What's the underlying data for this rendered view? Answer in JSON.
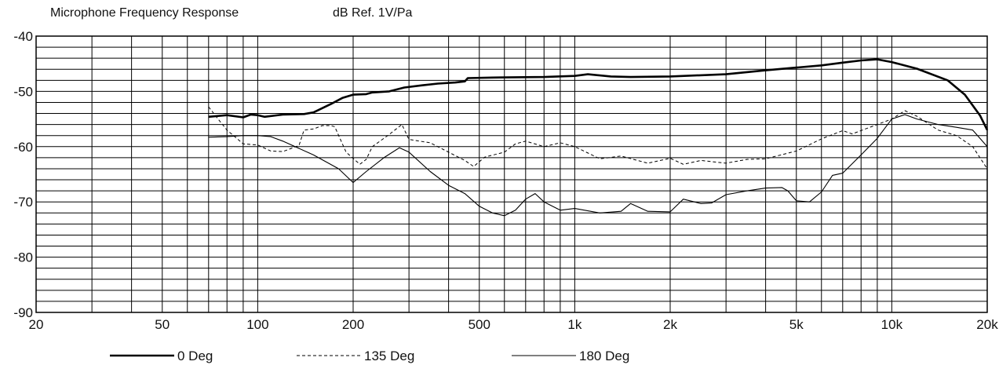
{
  "chart_data": {
    "type": "line",
    "title": "Microphone Frequency Response",
    "subtitle": "dB Ref. 1V/Pa",
    "xscale": "log",
    "xlim": [
      20,
      20000
    ],
    "ylim": [
      -90,
      -40
    ],
    "grid": true,
    "legend_placement": "bottom",
    "x_ticks": [
      {
        "v": 20,
        "label": "20"
      },
      {
        "v": 50,
        "label": "50"
      },
      {
        "v": 100,
        "label": "100"
      },
      {
        "v": 200,
        "label": "200"
      },
      {
        "v": 500,
        "label": "500"
      },
      {
        "v": 1000,
        "label": "1k"
      },
      {
        "v": 2000,
        "label": "2k"
      },
      {
        "v": 5000,
        "label": "5k"
      },
      {
        "v": 10000,
        "label": "10k"
      },
      {
        "v": 20000,
        "label": "20k"
      }
    ],
    "y_ticks": [
      {
        "v": -40,
        "label": "-40"
      },
      {
        "v": -50,
        "label": "-50"
      },
      {
        "v": -60,
        "label": "-60"
      },
      {
        "v": -70,
        "label": "-70"
      },
      {
        "v": -80,
        "label": "-80"
      },
      {
        "v": -90,
        "label": "-90"
      }
    ],
    "series": [
      {
        "name": "0 Deg",
        "style": "thick",
        "points": [
          [
            70,
            -54.6
          ],
          [
            80,
            -54.3
          ],
          [
            90,
            -54.7
          ],
          [
            95,
            -54.2
          ],
          [
            100,
            -54.3
          ],
          [
            105,
            -54.6
          ],
          [
            120,
            -54.2
          ],
          [
            140,
            -54.1
          ],
          [
            150,
            -53.8
          ],
          [
            170,
            -52.3
          ],
          [
            185,
            -51.2
          ],
          [
            200,
            -50.6
          ],
          [
            220,
            -50.5
          ],
          [
            230,
            -50.2
          ],
          [
            260,
            -50
          ],
          [
            290,
            -49.3
          ],
          [
            330,
            -48.9
          ],
          [
            370,
            -48.6
          ],
          [
            420,
            -48.4
          ],
          [
            450,
            -48.2
          ],
          [
            460,
            -47.6
          ],
          [
            550,
            -47.5
          ],
          [
            800,
            -47.4
          ],
          [
            1000,
            -47.2
          ],
          [
            1100,
            -46.9
          ],
          [
            1300,
            -47.3
          ],
          [
            1500,
            -47.4
          ],
          [
            2000,
            -47.3
          ],
          [
            3000,
            -46.9
          ],
          [
            4000,
            -46.2
          ],
          [
            5000,
            -45.7
          ],
          [
            6000,
            -45.3
          ],
          [
            7000,
            -44.8
          ],
          [
            8000,
            -44.4
          ],
          [
            9000,
            -44.2
          ],
          [
            10000,
            -44.7
          ],
          [
            12000,
            -45.9
          ],
          [
            15000,
            -48
          ],
          [
            17000,
            -50.6
          ],
          [
            19000,
            -54.4
          ],
          [
            21000,
            -57
          ]
        ]
      },
      {
        "name": "135 Deg",
        "style": "dashed",
        "points": [
          [
            70,
            -52.8
          ],
          [
            75,
            -55
          ],
          [
            80,
            -57
          ],
          [
            90,
            -59.5
          ],
          [
            100,
            -59.7
          ],
          [
            110,
            -60.8
          ],
          [
            120,
            -60.9
          ],
          [
            135,
            -59.8
          ],
          [
            140,
            -57
          ],
          [
            150,
            -56.8
          ],
          [
            160,
            -56.2
          ],
          [
            170,
            -56.2
          ],
          [
            175,
            -56.4
          ],
          [
            190,
            -61
          ],
          [
            210,
            -63.2
          ],
          [
            220,
            -62.3
          ],
          [
            230,
            -60
          ],
          [
            260,
            -57.8
          ],
          [
            285,
            -56
          ],
          [
            300,
            -58.7
          ],
          [
            350,
            -59.3
          ],
          [
            450,
            -62.5
          ],
          [
            480,
            -63.6
          ],
          [
            520,
            -61.9
          ],
          [
            600,
            -61
          ],
          [
            650,
            -59.5
          ],
          [
            700,
            -59
          ],
          [
            800,
            -60
          ],
          [
            900,
            -59.3
          ],
          [
            1000,
            -60
          ],
          [
            1200,
            -62.2
          ],
          [
            1400,
            -61.7
          ],
          [
            1700,
            -63
          ],
          [
            2000,
            -62.1
          ],
          [
            2200,
            -63.2
          ],
          [
            2500,
            -62.5
          ],
          [
            3000,
            -63
          ],
          [
            3500,
            -62.3
          ],
          [
            4000,
            -62.2
          ],
          [
            5000,
            -60.8
          ],
          [
            6000,
            -58.6
          ],
          [
            7000,
            -57.1
          ],
          [
            7500,
            -57.7
          ],
          [
            9000,
            -56
          ],
          [
            10000,
            -55
          ],
          [
            11000,
            -53.5
          ],
          [
            12000,
            -54.5
          ],
          [
            14000,
            -57
          ],
          [
            16000,
            -58
          ],
          [
            18000,
            -60
          ],
          [
            20000,
            -64
          ],
          [
            21000,
            -66
          ]
        ]
      },
      {
        "name": "180 Deg",
        "style": "thin",
        "points": [
          [
            70,
            -58.3
          ],
          [
            80,
            -58.2
          ],
          [
            90,
            -58
          ],
          [
            100,
            -58
          ],
          [
            110,
            -58.2
          ],
          [
            120,
            -59
          ],
          [
            150,
            -61.5
          ],
          [
            180,
            -64
          ],
          [
            200,
            -66.5
          ],
          [
            220,
            -64.5
          ],
          [
            250,
            -62
          ],
          [
            280,
            -60.2
          ],
          [
            300,
            -61
          ],
          [
            350,
            -64.5
          ],
          [
            400,
            -67
          ],
          [
            450,
            -68.5
          ],
          [
            500,
            -70.8
          ],
          [
            550,
            -72
          ],
          [
            600,
            -72.5
          ],
          [
            650,
            -71.5
          ],
          [
            700,
            -69.5
          ],
          [
            750,
            -68.5
          ],
          [
            800,
            -70
          ],
          [
            900,
            -71.5
          ],
          [
            1000,
            -71.2
          ],
          [
            1200,
            -72
          ],
          [
            1400,
            -71.7
          ],
          [
            1500,
            -70.3
          ],
          [
            1700,
            -71.7
          ],
          [
            2000,
            -71.8
          ],
          [
            2200,
            -69.5
          ],
          [
            2500,
            -70.3
          ],
          [
            2700,
            -70.2
          ],
          [
            3000,
            -68.7
          ],
          [
            3500,
            -68
          ],
          [
            4000,
            -67.5
          ],
          [
            4500,
            -67.4
          ],
          [
            4700,
            -68
          ],
          [
            5000,
            -69.8
          ],
          [
            5500,
            -70
          ],
          [
            6000,
            -68.2
          ],
          [
            6500,
            -65.2
          ],
          [
            7000,
            -64.8
          ],
          [
            8000,
            -61.5
          ],
          [
            9000,
            -58.5
          ],
          [
            10000,
            -55
          ],
          [
            11000,
            -54.2
          ],
          [
            12000,
            -55
          ],
          [
            14000,
            -56
          ],
          [
            16000,
            -56.5
          ],
          [
            18000,
            -57
          ],
          [
            20000,
            -60
          ],
          [
            21000,
            -62
          ]
        ]
      }
    ]
  }
}
